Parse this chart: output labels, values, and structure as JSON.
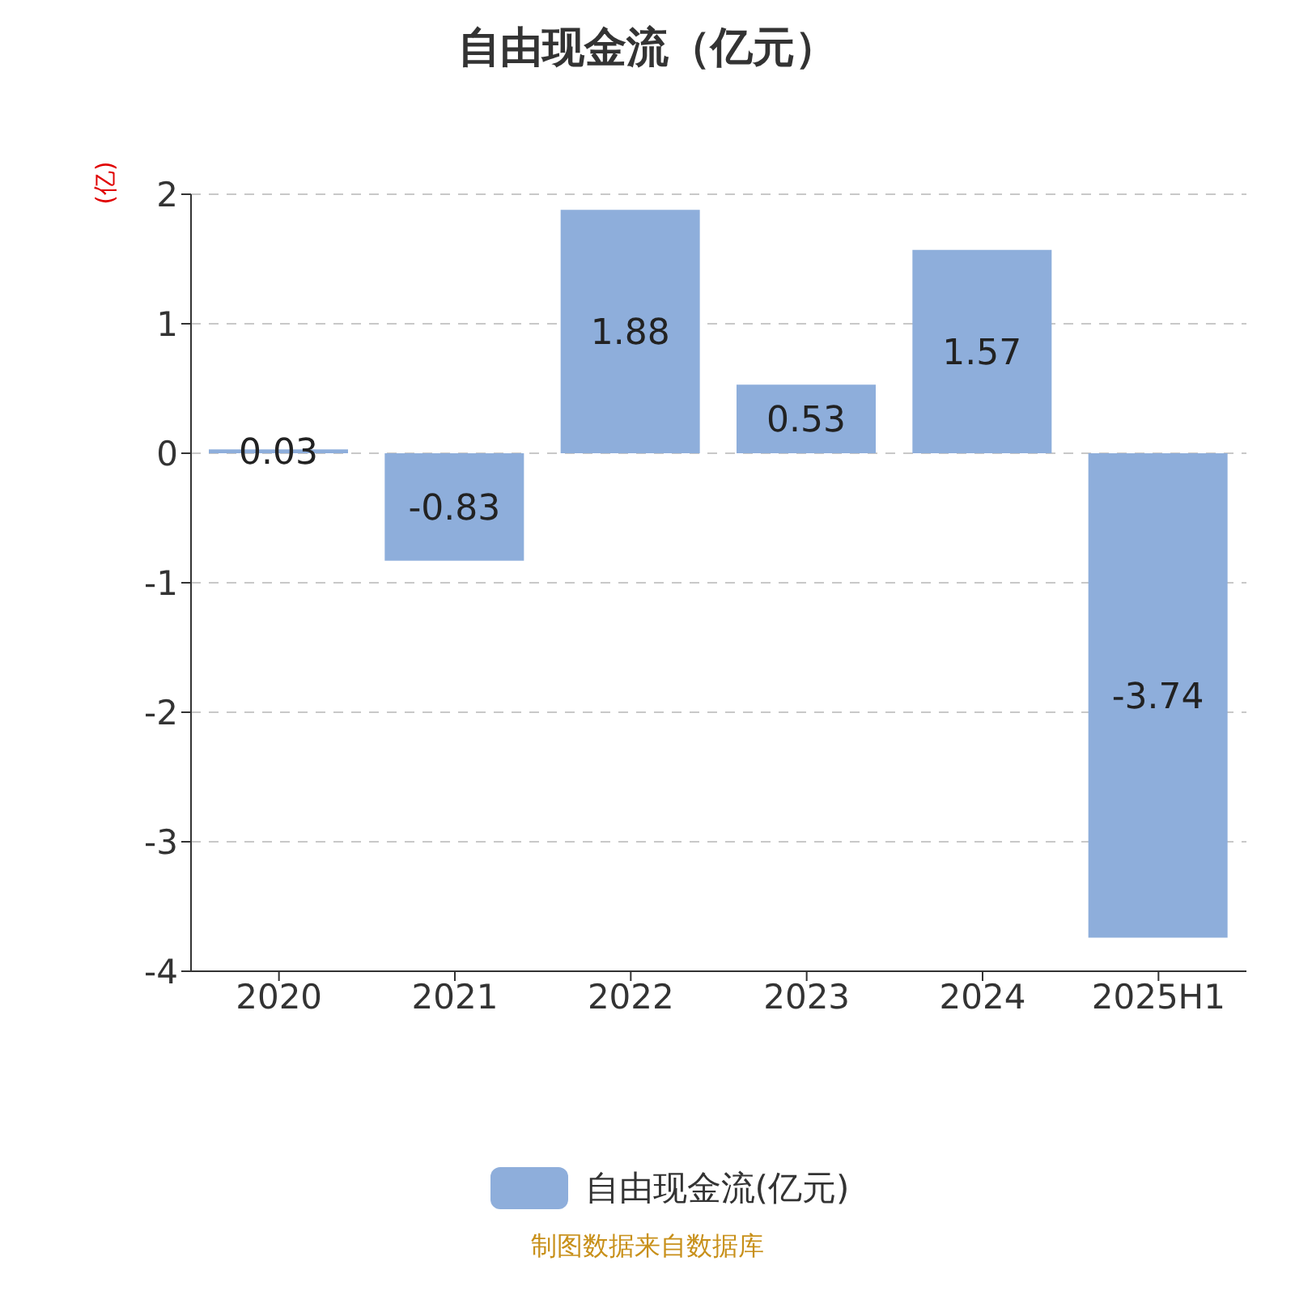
{
  "chart_data": {
    "type": "bar",
    "title": "自由现金流（亿元）",
    "ylabel": "(亿)",
    "categories": [
      "2020",
      "2021",
      "2022",
      "2023",
      "2024",
      "2025H1"
    ],
    "series": [
      {
        "name": "自由现金流(亿元)",
        "color": "#8eaedb",
        "values": [
          0.03,
          -0.83,
          1.88,
          0.53,
          1.57,
          -3.74
        ]
      }
    ],
    "ylim": [
      -4,
      2
    ],
    "yticks": [
      -4,
      -3,
      -2,
      -1,
      0,
      1,
      2
    ],
    "grid": "y",
    "legend": "bottom",
    "data_labels": true,
    "annotations": [
      "制图数据来自数据库"
    ]
  }
}
